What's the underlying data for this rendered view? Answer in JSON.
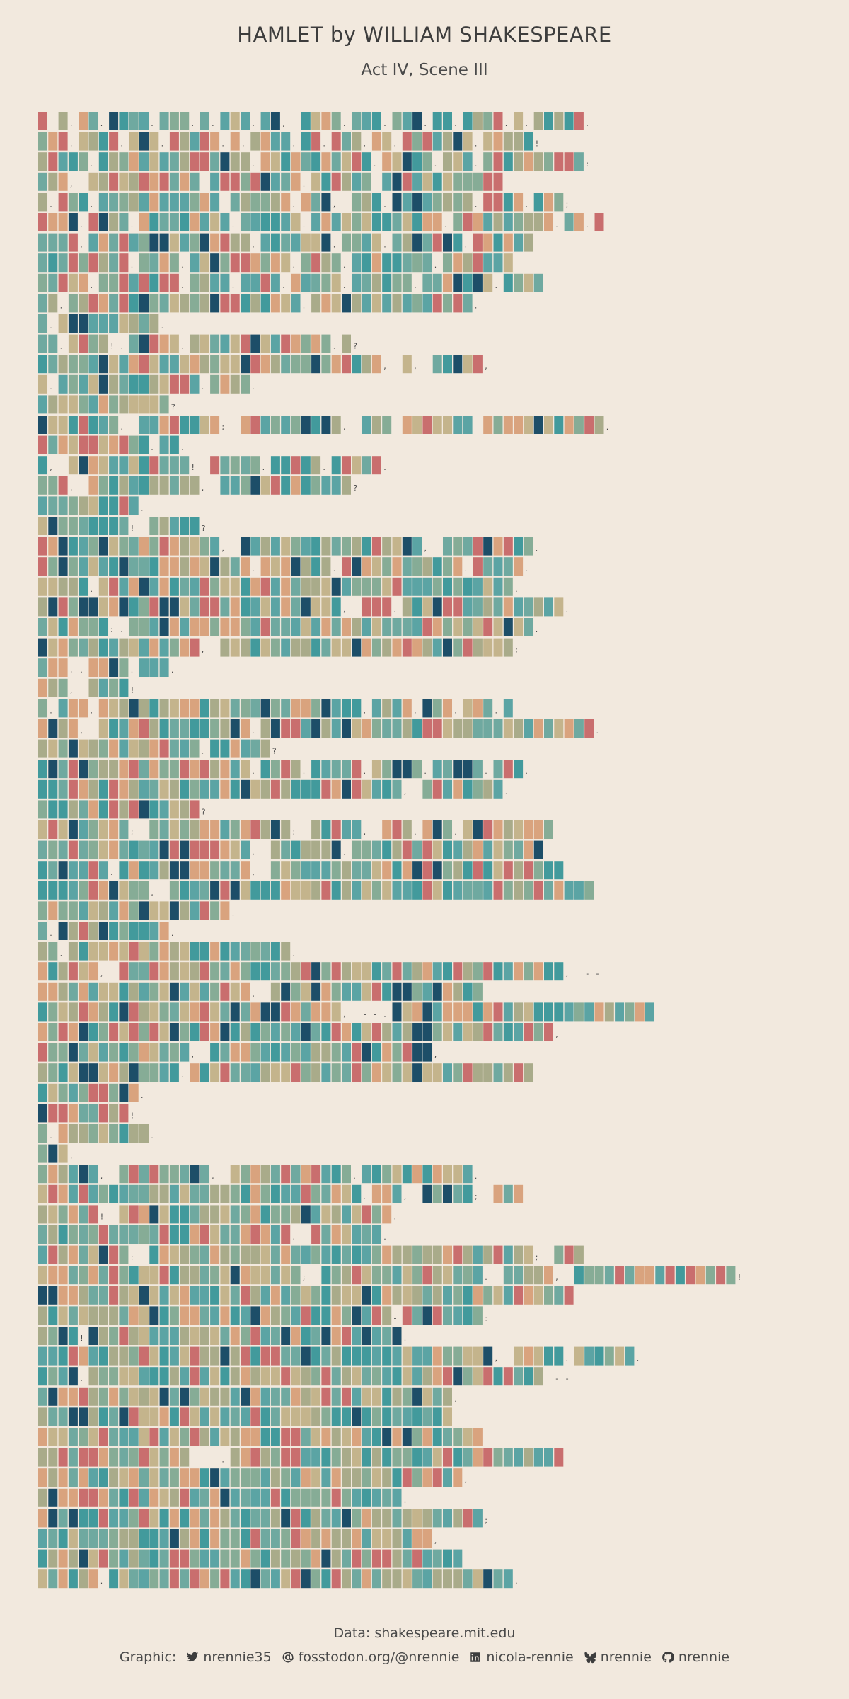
{
  "chart_data": {
    "type": "heatmap",
    "title": "HAMLET by WILLIAM SHAKESPEARE",
    "subtitle": "Act IV, Scene III",
    "palette": [
      "#5BA4A4",
      "#86AC96",
      "#A9AB8A",
      "#C4B48C",
      "#D9A37E",
      "#C96E6E",
      "#1D4E68",
      "#429A9C",
      "#6FA9A0"
    ],
    "rows": [
      "x x.xx.xxxx.xxx.x.xxx.xx, xxxx.xxx.xxx.xx.xxxx.x.xxxxx.",
      "xxx.xxxx.xxx.xxxxx.x.xxxx.xx.xxx.xx.xxxxxxx.xxxxx!",
      "xxxxx.xxxxxxxxxxxxxxx.xxxxxxxxxxx.xxxxx.xxx.xxxxxxxxxx:",
      "xxx, xxxxxxxxxxx xxxxxxxxx.xxxxxx xxxxxxxxxxxx",
      "x.xxx.xxxxxxxxxxxx xxxxxx.xxx, xxx.xxxxxxxx.xxxx.xxx;",
      "xxxx.xxxx.xxxxxxxxx.xxxxxx.xxxxxxxxxxxxx.xxxxxxxxxx.xx.x",
      "xxxx.xxxxxxxxxxxxxxxx.xxxxxxx.xxxx.xxxxxxx.xxxxxx",
      "xxxxxxxxx.xxxx.xxxxxxxxxx.xxxx.xxxxxxxx.xxxxxxx",
      "xxxxx.xxxxxxxx.xxxx.xxxx.xxxxx.xxxxxx.xxxxxxx.xxxx",
      "xx.xxxxxxxxxxxxxxxxxxxxxxx.xxxxxxxxxxxxxxxx.",
      "x.xxxxxxxxxx.",
      "xx.xxxx!.xxxxx.xxxxxxxxxxxxxx.x?",
      "xxxxxxxxxxxxxxxxxxxxxxxxxxxxxxxxxx, x, xxxxx,",
      "x.xxxxxxxxxxxxxx.xxxx.",
      "xxxxxxxxxxxxx?",
      "xxxxxxxx, xxxxxxxx; xxxxxxxxxx, xxx xxxxxxx xxxxxxxxxxxx.",
      "xxxxxxxxxxx.xx.",
      "x, xxxxxxxxxxxx! xxxxx.xxxxx.xxxxx.",
      "xxx, xxxxxxxxxxx, xxxxxxxxxxxxx?",
      "xxxxxxxxxx.",
      "xxxxxxxxx! xxxxx?",
      "xxxxxxxxxxxxxxxxxx, xxxxxxxxxxxxxxxxxx, xxxxxxxxx.",
      "xxxxxxxxxxxxxxxxxxxxx.xxxxxxx.xxxxxxxxxxxx.xxxxx.",
      "xxxxx.xxxxxxxxxxxxxxxxxxxxxxxxxxxxxxxxxxxxxxxxx.",
      "xxxxxxxxxxxxxxxxxxxxxxxxxxxxxx, xxx.xxxxxxxxxxxxxxxx.",
      "xxxxxxx:.xxxxxxxxxxxxxxxxxxxxxxxxxxxxxxxxxxxxxxxx.",
      "xxxxxxxxxxxxxxxx, xxxxxxxxxxxxxxxxxxxxxxxxxxxxx:",
      "xxx,.xxxx.xxx.",
      "xxx, xxxx!",
      "x.xxx.xxxxxxxxxxxxxxxxxxxxxxxxxx.xxxx.xxx.xxx.x",
      "xxxx, xxxxxxxxxxxxxxx.xxxxxxxxxxxxxxxxxxxxxxxxxxxxxxxxx.",
      "xxxxxxxxxxxxxxxx.xxxxxx?",
      "xxxxxxxxxxxxxxxxxxxxx.xxxx.xxxxx.xxxxx.xxxxx.xxx.",
      "xxxxxxxxxxxxxxxxxxxxxxxxxxxxxxxxxxxx, xxxxxxxx.",
      "xxxxxxxxxxxxxxxx?",
      "xxxxxxxxx; xxxxxxxxxxxxxx; xxxxx, xxx.xxx.xxxxxxxxx",
      "xxxxxxxxxxxxxxxxxxxxx, xxxxxxx.xxxxxxxxxxxxxxxxxxx",
      "xxxxxxx.xxxxxxxxxxxxx, xxxxxxxxxxxxxxxxxxxxxxxxxxxxx",
      "xxxxxxxxxxx, xxxxxxxxxxxxxxxxxxxxxxxxxxxxxxxxxxxxxxxxxx",
      "xxxxxxxxxxxxxxxxxxx.",
      "x.xxxxxxxxxxx.",
      "xx.xxxxxxxxxxxxxxxxxxxxxx.",
      "xxxxxx, xxxxxxxxxxxxxxxxxxxxxxxxxxxxxxxxxxxxxxxxxxxx, --",
      "xxxxxxxxxxxxxxxxxxxxx, xxxxxxxxxxxxxxxxxxxxx",
      "xxxxxxxxxxxxxxxxxxxxxxxxxxxxxx, --.xxxxxxxxxxxxxxxxxxxxxxxxxx",
      "xxxxxxxxxxxxxxxxxxxxxxxxxxxxxxxxxxxxxxxxxxxxxxxxxxx,",
      "xxxxxxxxxxxxxxx, xxxxxxxxxxxxxxxxxxxxxx,",
      "xxxxxxxxxxxxxx.xxxxxxxxxxxxxxxxxxxxxxxxxxxxxxxxxx",
      "xxxxxxxxxx.",
      "xxxxxxxxx!",
      "x.xxxxxxxxx.",
      "xxx.",
      "xxxxxx, xxxxxxxxx, xxxxxxxxxxxx.xxxxxxxxxxx.",
      "xxxxxxxxxxxxxxxxxxxxxxxxxxxxxxxx.xxx, xxxxx; xxx",
      "xxxxxx! xxxxxxxxxxxxxxxxxxxxxxxxxxx.",
      "xxxxxxxxxxxxxxxxxxxxxxxxx, xxxxxxx.",
      "xxxxxxxxx: xxxxxxxxxxxxxxxxxxxxxxxxxxxxxxxxxxxxxx; xxx",
      "xxxxxxxxxxxxxxxxxxxxxxxxxx; xxxxxxxxxxxxxxxx. xxxxx, xxxxxxxxxxxxxxxx!",
      "xxxxxxxxxxxxxxxxxxxxxxxxxxxxxxxxxxxxxxxxxxxxxxxxxxxxx",
      "xxxxxxxxxxxxxxxxxxxxxxxxxxxxxxxxxxx-xxxxxxxx:",
      "xxxx!xxxxxxxxxxxxxxxxxxxxxxxxxxxxxxx.",
      "xxxxxxxxxxxxxxxxxxxxxxxxxxxxxxxxxxxxxxxxxxxxx, xxxxx.xxxxxx.",
      "xxxx.xxxxxxxxxxxxxxxxxxxxxxxxxxxxxxxxxxxxxxxxxxxxx --",
      "xxxxxxxxxxxxxxxxxxxxxxxxxxxxxxxxxxxxxxxxx.",
      "xxxxxxxxxxxxxxxxxxxxxxxxxxxxxxxxxxxxxxxxx",
      "xxxxxxxxxxxxxxxxxxxxxxxxxxxxxxxxxxxxxxxxxxxx",
      "xxxxxxxxxxxxxxx --.xxxxxxxxxxxxxxxxxxxxxxxxxxxxxxxxx",
      "xxxxxxxxxxxxxxxxxxxxxxxxxxxxxxxxxxxxxxxxxx,",
      "xxxxxxxxxxxxxxxxxxxxxxxxxxxxxxxxxxxx.",
      "xxxxxxxxxxxxxxxxxxxxxxxxxxxxxxxxxxxxxxxxxxxx;",
      "xxxxxxxxxxxxxxxxxxxxxxxxxxxxxxxxxxxxxxx,",
      "xxxxxxxxxxxxxxxxxxxxxxxxxxxxxxxxxxxxxxxxxx",
      "xxxxxx.xxxxxxxxxxxxxxxxxxxxxxxxxxxxxxxxxxxxxxxx."
    ]
  },
  "caption": "Data: shakespeare.mit.edu",
  "credits": {
    "label": "Graphic:",
    "items": [
      {
        "icon": "twitter-icon",
        "text": "nrennie35"
      },
      {
        "icon": "mastodon-icon",
        "text": "fosstodon.org/@nrennie"
      },
      {
        "icon": "linkedin-icon",
        "text": "nicola-rennie"
      },
      {
        "icon": "bluesky-icon",
        "text": "nrennie"
      },
      {
        "icon": "github-icon",
        "text": "nrennie"
      }
    ]
  }
}
